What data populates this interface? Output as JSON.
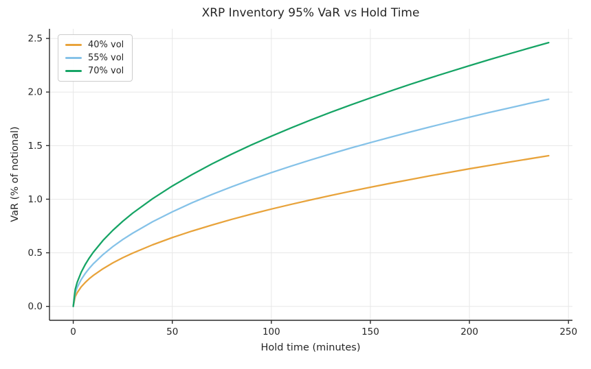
{
  "chart_data": {
    "type": "line",
    "title": "XRP Inventory 95% VaR vs Hold Time",
    "xlabel": "Hold time (minutes)",
    "ylabel": "VaR (% of notional)",
    "xlim": [
      -12,
      252
    ],
    "ylim": [
      -0.13,
      2.59
    ],
    "xticks": [
      0,
      50,
      100,
      150,
      200,
      250
    ],
    "xtick_labels": [
      "0",
      "50",
      "100",
      "150",
      "200",
      "250"
    ],
    "yticks": [
      0.0,
      0.5,
      1.0,
      1.5,
      2.0,
      2.5
    ],
    "ytick_labels": [
      "0.0",
      "0.5",
      "1.0",
      "1.5",
      "2.0",
      "2.5"
    ],
    "grid": true,
    "legend_position": "upper left",
    "grid_color": "#e7e7e7",
    "spine_color": "#2a2a2a",
    "x": [
      0,
      1,
      2,
      4,
      6,
      8,
      10,
      15,
      20,
      25,
      30,
      40,
      50,
      60,
      70,
      80,
      90,
      100,
      110,
      120,
      130,
      140,
      150,
      160,
      170,
      180,
      190,
      200,
      210,
      220,
      230,
      240
    ],
    "series": [
      {
        "name": "40% vol",
        "color": "#E8A33B",
        "values": [
          0,
          0.091,
          0.128,
          0.182,
          0.222,
          0.257,
          0.287,
          0.351,
          0.406,
          0.454,
          0.497,
          0.574,
          0.642,
          0.703,
          0.759,
          0.812,
          0.861,
          0.908,
          0.952,
          0.994,
          1.035,
          1.074,
          1.112,
          1.148,
          1.183,
          1.218,
          1.251,
          1.284,
          1.315,
          1.346,
          1.376,
          1.406
        ]
      },
      {
        "name": "55% vol",
        "color": "#85C2E8",
        "values": [
          0,
          0.125,
          0.177,
          0.25,
          0.306,
          0.353,
          0.395,
          0.483,
          0.558,
          0.624,
          0.683,
          0.789,
          0.882,
          0.967,
          1.044,
          1.116,
          1.184,
          1.248,
          1.309,
          1.367,
          1.423,
          1.477,
          1.528,
          1.578,
          1.627,
          1.674,
          1.72,
          1.765,
          1.809,
          1.851,
          1.893,
          1.933
        ]
      },
      {
        "name": "70% vol",
        "color": "#16A465",
        "values": [
          0,
          0.159,
          0.225,
          0.318,
          0.389,
          0.449,
          0.502,
          0.615,
          0.71,
          0.794,
          0.87,
          1.004,
          1.123,
          1.23,
          1.329,
          1.421,
          1.507,
          1.588,
          1.666,
          1.74,
          1.811,
          1.879,
          1.945,
          2.009,
          2.071,
          2.131,
          2.189,
          2.246,
          2.302,
          2.356,
          2.409,
          2.461
        ]
      }
    ]
  }
}
